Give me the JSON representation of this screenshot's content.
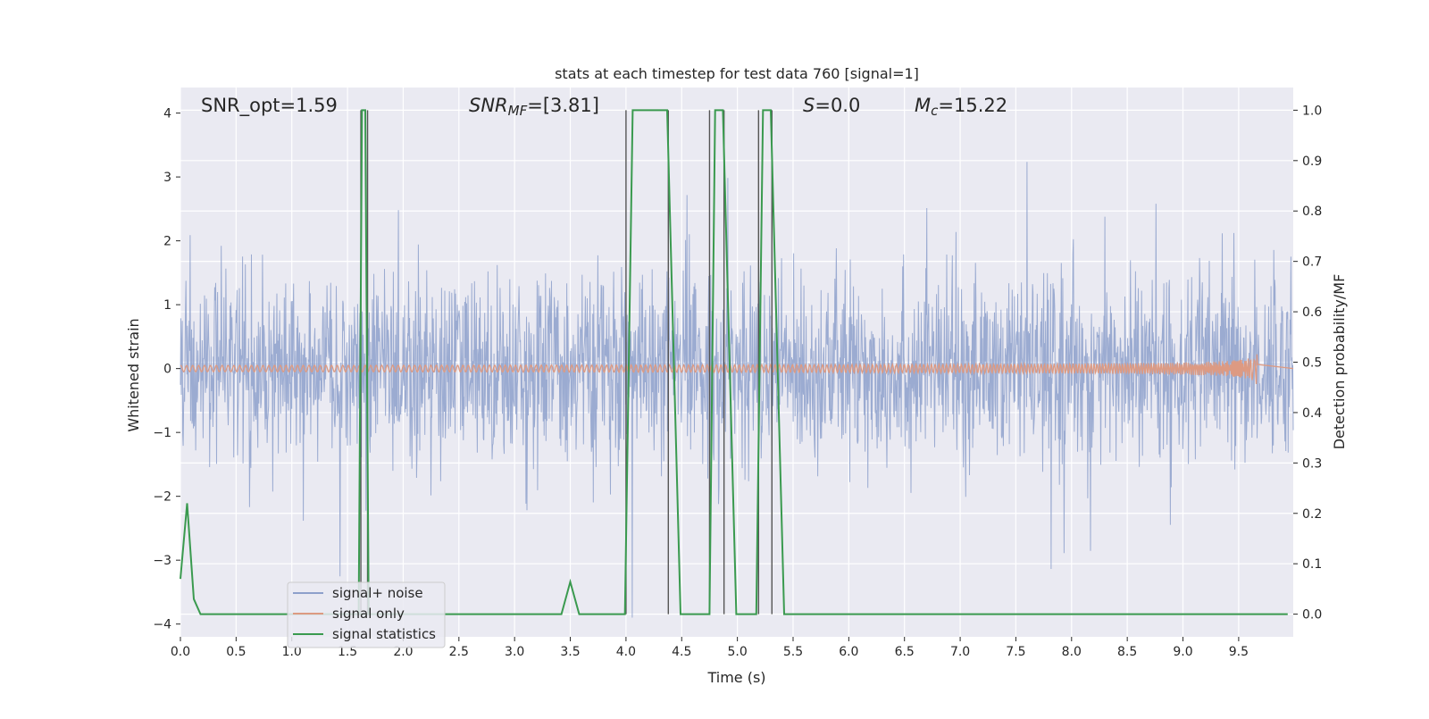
{
  "chart_data": {
    "type": "line",
    "title": "stats at each timestep for test data 760 [signal=1]",
    "xlabel": "Time (s)",
    "ylabel": "Whitened strain",
    "ylabel_right": "Detection probability/MF",
    "xlim": [
      0,
      9.99
    ],
    "ylim": [
      -4.2,
      4.4
    ],
    "ylim_right": [
      -0.045,
      1.045
    ],
    "x_ticks": [
      "0.0",
      "0.5",
      "1.0",
      "1.5",
      "2.0",
      "2.5",
      "3.0",
      "3.5",
      "4.0",
      "4.5",
      "5.0",
      "5.5",
      "6.0",
      "6.5",
      "7.0",
      "7.5",
      "8.0",
      "8.5",
      "9.0",
      "9.5"
    ],
    "y_ticks": [
      "4",
      "3",
      "2",
      "1",
      "0",
      "−1",
      "−2",
      "−3",
      "−4"
    ],
    "y_right_ticks": [
      "0.0",
      "0.1",
      "0.2",
      "0.3",
      "0.4",
      "0.5",
      "0.6",
      "0.7",
      "0.8",
      "0.9",
      "1.0"
    ],
    "grid": true,
    "legend_placement": "lower-left",
    "annotations": {
      "snr_opt": "SNR_opt=1.59",
      "snr_mf_base": "SNR",
      "snr_mf_sub": "MF",
      "snr_mf_value": "=[3.81]",
      "s_base": "S",
      "s_value": "=0.0",
      "mc_base": "M",
      "mc_sub": "c",
      "mc_value": "=15.22"
    },
    "series": [
      {
        "name": "signal+ noise",
        "color": "#8da0cb",
        "axis": "left",
        "description_level": "noise band roughly between -1.6 and 1.8, spikes to about 4.1 and -3.9"
      },
      {
        "name": "signal only",
        "color": "#dd9a82",
        "axis": "left",
        "chirp_end_time": 9.67,
        "chirp_peak_amplitude": 0.35
      },
      {
        "name": "signal statistics",
        "color": "#3a9a4f",
        "axis": "right",
        "x": [
          0.0,
          0.06,
          0.12,
          0.18,
          3.42,
          3.5,
          3.58,
          3.99,
          4.06,
          4.37,
          4.49,
          4.75,
          4.8,
          4.87,
          4.99,
          5.17,
          5.23,
          5.3,
          5.42,
          9.94
        ],
        "y": [
          0.07,
          0.22,
          0.03,
          0.0,
          0.0,
          0.064,
          0.0,
          0.0,
          1.0,
          1.0,
          0.0,
          0.0,
          1.0,
          1.0,
          0.0,
          0.0,
          1.0,
          1.0,
          0.0,
          0.0
        ],
        "spike": {
          "x": [
            1.6,
            1.63,
            1.66,
            1.69
          ],
          "y": [
            0.0,
            1.0,
            1.0,
            0.0
          ]
        }
      }
    ],
    "vertical_markers": {
      "color": "#555555",
      "x": [
        1.62,
        1.68,
        4.0,
        4.38,
        4.75,
        4.88,
        5.19,
        5.31
      ],
      "y_range": [
        0.0,
        1.0
      ]
    }
  }
}
